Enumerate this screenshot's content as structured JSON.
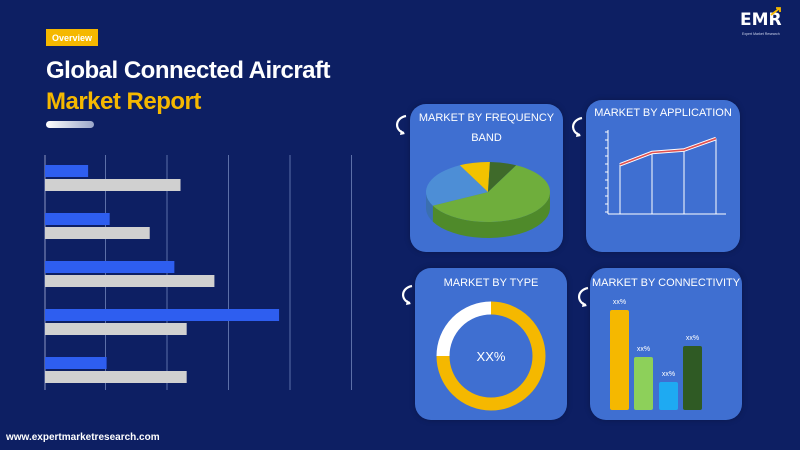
{
  "header": {
    "badge": "Overview",
    "title_line1": "Global Connected Aircraft",
    "title_line2": "Market Report"
  },
  "logo": {
    "text": "EMR",
    "tagline": "Expert Market Research"
  },
  "colors": {
    "background": "#0d1f63",
    "accent_yellow": "#f5b800",
    "panel_blue": "#3f6fd1",
    "bar_blue": "#2e5ef0",
    "bar_grey": "#d0d0d0"
  },
  "decorative_chart": {
    "type": "bar",
    "orientation": "horizontal",
    "series": [
      {
        "values": [
          14,
          21,
          42,
          76,
          20
        ]
      },
      {
        "values": [
          44,
          34,
          55,
          46,
          46
        ]
      }
    ],
    "xlim": [
      0,
      100
    ],
    "grid": true
  },
  "panels": {
    "frequency_band": {
      "title_line1": "MARKET BY FREQUENCY",
      "title_line2": "BAND"
    },
    "application": {
      "title": "MARKET BY APPLICATION"
    },
    "type": {
      "title": "MARKET BY TYPE",
      "center_label": "XX%"
    },
    "connectivity": {
      "title": "MARKET BY CONNECTIVITY",
      "bar_labels": [
        "xx%",
        "xx%",
        "xx%",
        "xx%"
      ]
    }
  },
  "chart_data": [
    {
      "type": "pie",
      "values": [
        60,
        25,
        8,
        7
      ],
      "colors": [
        "#6fae3c",
        "#4d8ed6",
        "#f2c200",
        "#3f6a2a"
      ]
    },
    {
      "type": "line",
      "values": [
        60,
        75,
        78,
        92
      ],
      "colors": [
        "#e05050"
      ]
    },
    {
      "type": "pie",
      "values": [
        75,
        25
      ],
      "colors": [
        "#f5b800",
        "#ffffff"
      ]
    },
    {
      "type": "bar",
      "values": [
        100,
        53,
        28,
        64
      ],
      "colors": [
        "#f5b800",
        "#8dd05a",
        "#1eaaf2",
        "#2f5a24"
      ]
    }
  ],
  "footer": {
    "url": "www.expertmarketresearch.com"
  }
}
